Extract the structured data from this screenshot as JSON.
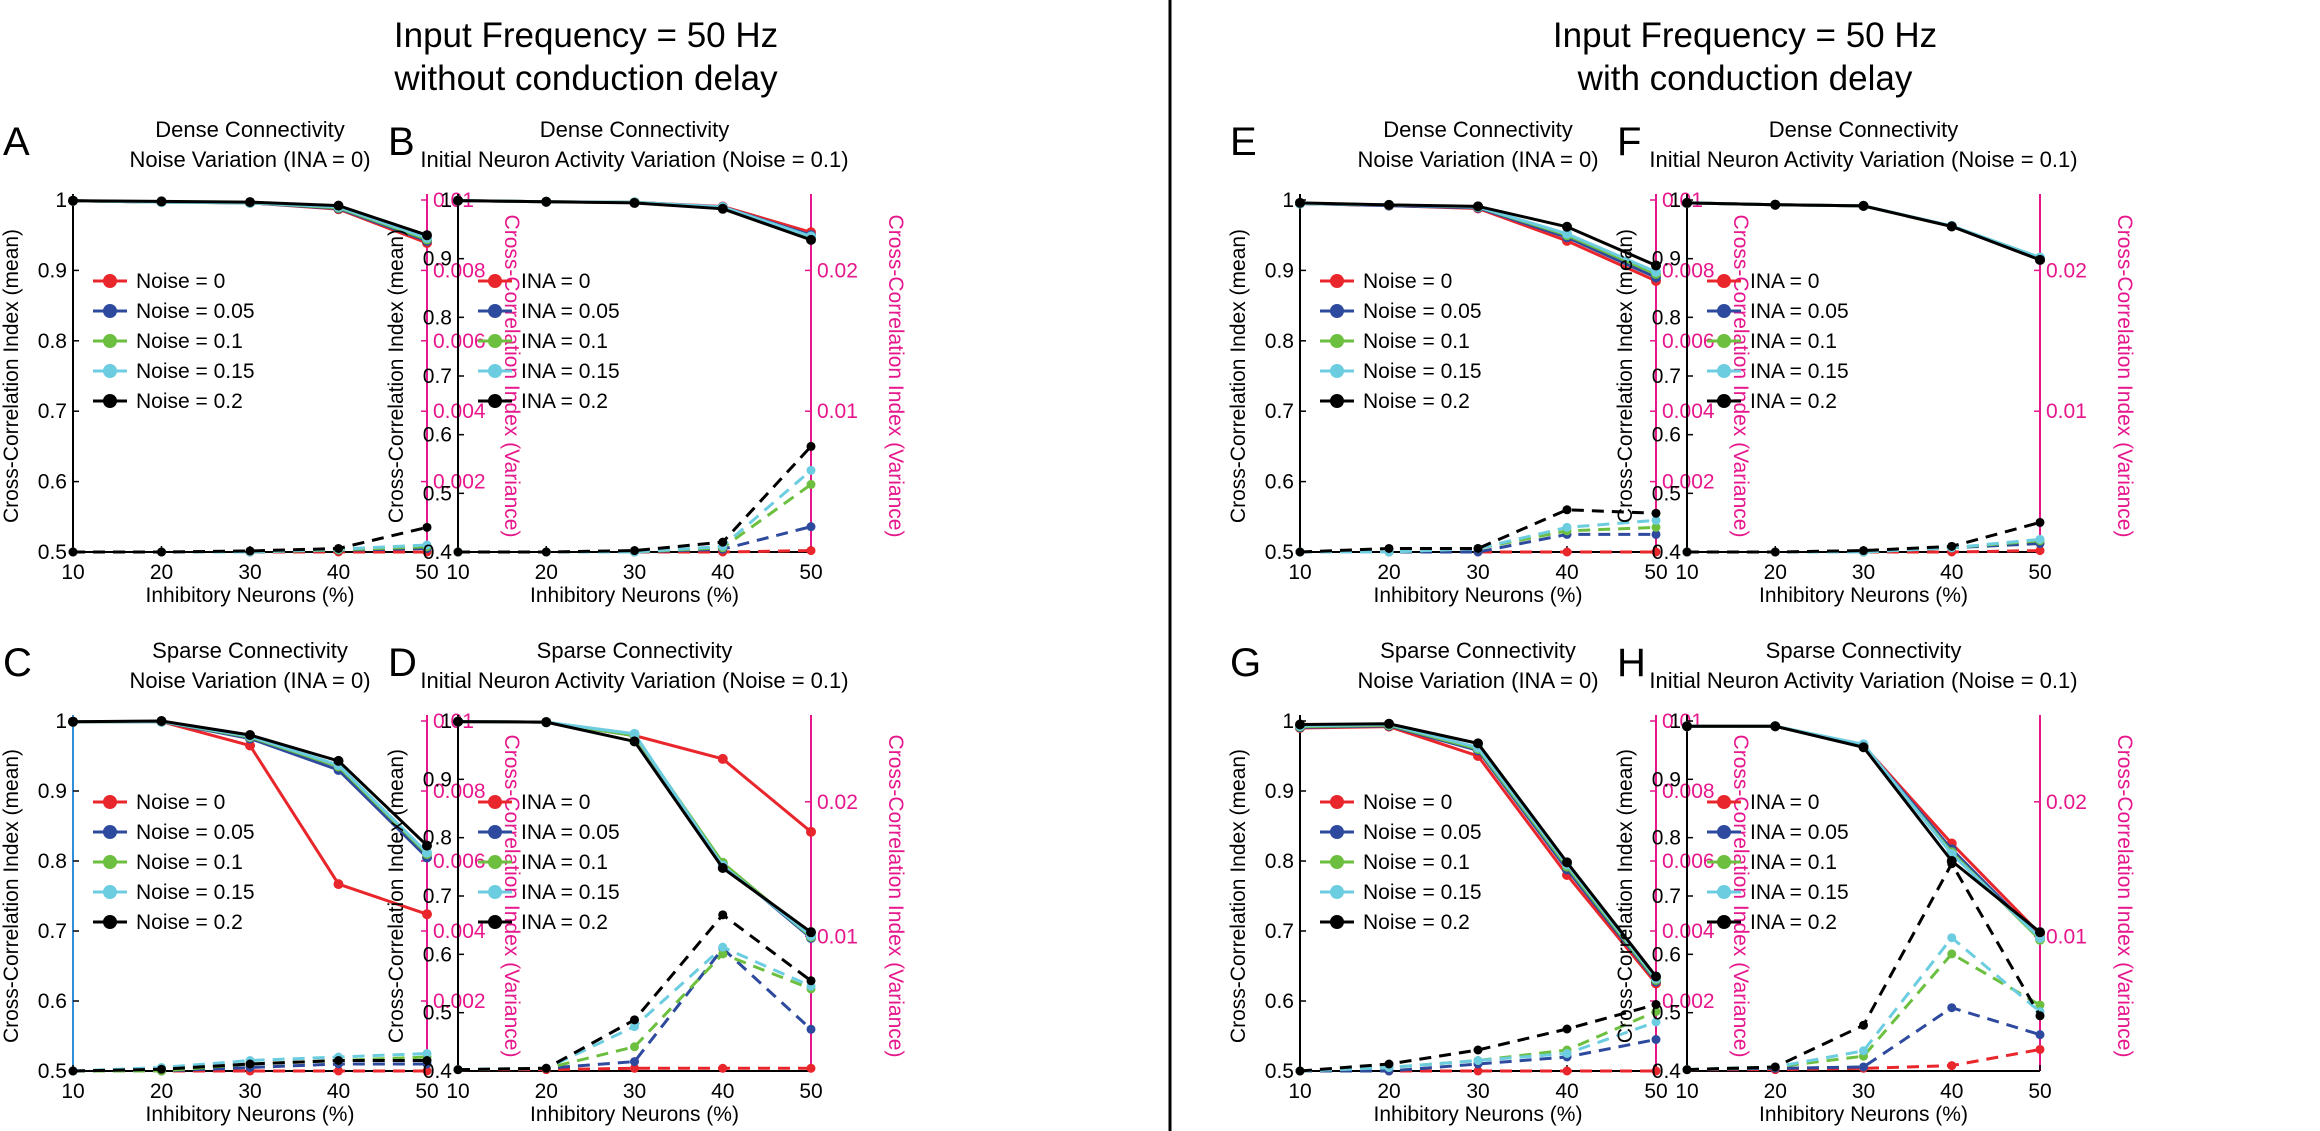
{
  "figure": {
    "left_title_line1": "Input Frequency = 50 Hz",
    "left_title_line2": "without conduction delay",
    "right_title_line1": "Input Frequency = 50 Hz",
    "right_title_line2": "with conduction delay",
    "colors": [
      "#e8262b",
      "#2e4a9e",
      "#6cbf3f",
      "#6ccde0",
      "#000000"
    ],
    "right_axis_color": "#e6178c",
    "left_axis_blue": "#2e8fd6"
  },
  "chart_data": [
    {
      "id": "A",
      "type": "line",
      "title_line1": "Dense Connectivity",
      "title_line2": "Noise Variation (INA = 0)",
      "xlabel": "Inhibitory Neurons (%)",
      "ylabel": "Cross-Correlation Index (mean)",
      "y2label": "Cross-Correlation Index (Variance)",
      "x": [
        10,
        20,
        30,
        40,
        50
      ],
      "ylim": [
        0.5,
        1
      ],
      "yticks": [
        "0.5",
        "0.6",
        "0.7",
        "0.8",
        "0.9",
        "1"
      ],
      "ytick_values": [
        0.5,
        0.6,
        0.7,
        0.8,
        0.9,
        1
      ],
      "y2lim": [
        0,
        0.01
      ],
      "y2ticks": [
        "0.002",
        "0.004",
        "0.006",
        "0.008",
        "0.01"
      ],
      "y2tick_values": [
        0.002,
        0.004,
        0.006,
        0.008,
        0.01
      ],
      "left_axis_colored": false,
      "legend": [
        "Noise = 0",
        "Noise = 0.05",
        "Noise = 0.1",
        "Noise = 0.15",
        "Noise = 0.2"
      ],
      "mean_series": [
        [
          0.999,
          0.997,
          0.996,
          0.987,
          0.939
        ],
        [
          0.999,
          0.997,
          0.996,
          0.988,
          0.942
        ],
        [
          0.999,
          0.997,
          0.996,
          0.989,
          0.944
        ],
        [
          0.999,
          0.997,
          0.996,
          0.99,
          0.946
        ],
        [
          0.999,
          0.998,
          0.997,
          0.992,
          0.95
        ]
      ],
      "var_series": [
        [
          0,
          0,
          0,
          0,
          0
        ],
        [
          0,
          0,
          0,
          5e-05,
          0.0001
        ],
        [
          0,
          0,
          0,
          6e-05,
          0.00015
        ],
        [
          0,
          0,
          0,
          8e-05,
          0.0002
        ],
        [
          0,
          0,
          3e-05,
          0.0001,
          0.0007
        ]
      ]
    },
    {
      "id": "B",
      "type": "line",
      "title_line1": "Dense Connectivity",
      "title_line2": "Initial Neuron Activity Variation (Noise = 0.1)",
      "xlabel": "Inhibitory Neurons (%)",
      "ylabel": "Cross-Correlation Index (mean)",
      "y2label": "Cross-Correlation Index (Variance)",
      "x": [
        10,
        20,
        30,
        40,
        50
      ],
      "ylim": [
        0.4,
        1
      ],
      "yticks": [
        "0.4",
        "0.5",
        "0.6",
        "0.7",
        "0.8",
        "0.9",
        "1"
      ],
      "ytick_values": [
        0.4,
        0.5,
        0.6,
        0.7,
        0.8,
        0.9,
        1
      ],
      "y2lim": [
        0,
        0.025
      ],
      "y2ticks": [
        "0.01",
        "0.02"
      ],
      "y2tick_values": [
        0.01,
        0.02
      ],
      "left_axis_colored": false,
      "legend": [
        "INA = 0",
        "INA = 0.05",
        "INA = 0.1",
        "INA = 0.15",
        "INA = 0.2"
      ],
      "mean_series": [
        [
          0.999,
          0.997,
          0.996,
          0.989,
          0.945
        ],
        [
          0.999,
          0.997,
          0.996,
          0.988,
          0.94
        ],
        [
          0.999,
          0.997,
          0.996,
          0.987,
          0.937
        ],
        [
          0.999,
          0.997,
          0.996,
          0.988,
          0.938
        ],
        [
          0.999,
          0.997,
          0.995,
          0.985,
          0.932
        ]
      ],
      "var_series": [
        [
          0,
          0,
          0,
          0,
          0.0001
        ],
        [
          0,
          0,
          0,
          0.0002,
          0.0018
        ],
        [
          0,
          0,
          0,
          0.0003,
          0.0048
        ],
        [
          0,
          0,
          0,
          0.0004,
          0.0058
        ],
        [
          0,
          0,
          0.0001,
          0.0007,
          0.0075
        ]
      ]
    },
    {
      "id": "C",
      "type": "line",
      "title_line1": "Sparse Connectivity",
      "title_line2": "Noise Variation (INA = 0)",
      "xlabel": "Inhibitory Neurons (%)",
      "ylabel": "Cross-Correlation Index (mean)",
      "y2label": "Cross-Correlation Index (Variance)",
      "x": [
        10,
        20,
        30,
        40,
        50
      ],
      "ylim": [
        0.5,
        1
      ],
      "yticks": [
        "0.5",
        "0.6",
        "0.7",
        "0.8",
        "0.9",
        "1"
      ],
      "ytick_values": [
        0.5,
        0.6,
        0.7,
        0.8,
        0.9,
        1
      ],
      "y2lim": [
        0,
        0.01
      ],
      "y2ticks": [
        "0.002",
        "0.004",
        "0.006",
        "0.008",
        "0.01"
      ],
      "y2tick_values": [
        0.002,
        0.004,
        0.006,
        0.008,
        0.01
      ],
      "left_axis_colored": true,
      "legend": [
        "Noise = 0",
        "Noise = 0.05",
        "Noise = 0.1",
        "Noise = 0.15",
        "Noise = 0.2"
      ],
      "mean_series": [
        [
          0.999,
          0.999,
          0.965,
          0.767,
          0.724
        ],
        [
          0.999,
          0.999,
          0.975,
          0.93,
          0.805
        ],
        [
          0.999,
          0.999,
          0.977,
          0.935,
          0.81
        ],
        [
          0.999,
          0.999,
          0.978,
          0.937,
          0.812
        ],
        [
          0.999,
          1.0,
          0.98,
          0.943,
          0.822
        ]
      ],
      "var_series": [
        [
          0,
          0,
          0,
          0,
          0
        ],
        [
          0,
          0,
          0.0001,
          0.0002,
          0.0002
        ],
        [
          0,
          0,
          0.0002,
          0.0003,
          0.0004
        ],
        [
          0,
          0.0001,
          0.0003,
          0.0004,
          0.0005
        ],
        [
          0,
          5e-05,
          0.0002,
          0.0003,
          0.0003
        ]
      ]
    },
    {
      "id": "D",
      "type": "line",
      "title_line1": "Sparse Connectivity",
      "title_line2": "Initial Neuron Activity Variation (Noise = 0.1)",
      "xlabel": "Inhibitory Neurons (%)",
      "ylabel": "Cross-Correlation Index (mean)",
      "y2label": "Cross-Correlation Index (Variance)",
      "x": [
        10,
        20,
        30,
        40,
        50
      ],
      "ylim": [
        0.4,
        1
      ],
      "yticks": [
        "0.4",
        "0.5",
        "0.6",
        "0.7",
        "0.8",
        "0.9",
        "1"
      ],
      "ytick_values": [
        0.4,
        0.5,
        0.6,
        0.7,
        0.8,
        0.9,
        1
      ],
      "y2lim": [
        0,
        0.026
      ],
      "y2ticks": [
        "0.01",
        "0.02"
      ],
      "y2tick_values": [
        0.01,
        0.02
      ],
      "left_axis_colored": false,
      "legend": [
        "INA = 0",
        "INA = 0.05",
        "INA = 0.1",
        "INA = 0.15",
        "INA = 0.2"
      ],
      "mean_series": [
        [
          0.999,
          0.998,
          0.975,
          0.935,
          0.81
        ],
        [
          0.999,
          0.998,
          0.975,
          0.755,
          0.628
        ],
        [
          0.999,
          0.998,
          0.975,
          0.757,
          0.63
        ],
        [
          0.999,
          0.998,
          0.978,
          0.752,
          0.632
        ],
        [
          0.999,
          0.998,
          0.965,
          0.748,
          0.638
        ]
      ],
      "var_series": [
        [
          0.0001,
          0.0001,
          0.0002,
          0.0002,
          0.0002
        ],
        [
          0.0001,
          0.0002,
          0.0007,
          0.0091,
          0.0031
        ],
        [
          0.0001,
          0.0002,
          0.0018,
          0.0087,
          0.0061
        ],
        [
          0.0001,
          0.0002,
          0.0033,
          0.0092,
          0.0063
        ],
        [
          0.0001,
          0.0002,
          0.0038,
          0.0116,
          0.0067
        ]
      ]
    },
    {
      "id": "E",
      "type": "line",
      "title_line1": "Dense Connectivity",
      "title_line2": "Noise Variation (INA = 0)",
      "xlabel": "Inhibitory Neurons (%)",
      "ylabel": "Cross-Correlation Index (mean)",
      "y2label": "Cross-Correlation Index (Variance)",
      "x": [
        10,
        20,
        30,
        40,
        50
      ],
      "ylim": [
        0.5,
        1
      ],
      "yticks": [
        "0.5",
        "0.6",
        "0.7",
        "0.8",
        "0.9",
        "1"
      ],
      "ytick_values": [
        0.5,
        0.6,
        0.7,
        0.8,
        0.9,
        1
      ],
      "y2lim": [
        0,
        0.01
      ],
      "y2ticks": [
        "0.002",
        "0.004",
        "0.006",
        "0.008",
        "0.01"
      ],
      "y2tick_values": [
        0.002,
        0.004,
        0.006,
        0.008,
        0.01
      ],
      "left_axis_colored": false,
      "legend": [
        "Noise = 0",
        "Noise = 0.05",
        "Noise = 0.1",
        "Noise = 0.15",
        "Noise = 0.2"
      ],
      "mean_series": [
        [
          0.995,
          0.992,
          0.988,
          0.942,
          0.885
        ],
        [
          0.995,
          0.992,
          0.989,
          0.947,
          0.89
        ],
        [
          0.995,
          0.993,
          0.99,
          0.95,
          0.895
        ],
        [
          0.995,
          0.993,
          0.99,
          0.952,
          0.898
        ],
        [
          0.996,
          0.993,
          0.991,
          0.962,
          0.907
        ]
      ],
      "var_series": [
        [
          0,
          0,
          0,
          0,
          0
        ],
        [
          0,
          0,
          0,
          0.0005,
          0.0005
        ],
        [
          0,
          0,
          0.0001,
          0.0006,
          0.0007
        ],
        [
          0,
          0,
          0.0001,
          0.0007,
          0.0009
        ],
        [
          0,
          0.0001,
          0.0001,
          0.0012,
          0.0011
        ]
      ]
    },
    {
      "id": "F",
      "type": "line",
      "title_line1": "Dense Connectivity",
      "title_line2": "Initial Neuron Activity Variation (Noise = 0.1)",
      "xlabel": "Inhibitory Neurons (%)",
      "ylabel": "Cross-Correlation Index (mean)",
      "y2label": "Cross-Correlation Index (Variance)",
      "x": [
        10,
        20,
        30,
        40,
        50
      ],
      "ylim": [
        0.4,
        1
      ],
      "yticks": [
        "0.4",
        "0.5",
        "0.6",
        "0.7",
        "0.8",
        "0.9",
        "1"
      ],
      "ytick_values": [
        0.4,
        0.5,
        0.6,
        0.7,
        0.8,
        0.9,
        1
      ],
      "y2lim": [
        0,
        0.025
      ],
      "y2ticks": [
        "0.01",
        "0.02"
      ],
      "y2tick_values": [
        0.01,
        0.02
      ],
      "left_axis_colored": false,
      "legend": [
        "INA = 0",
        "INA = 0.05",
        "INA = 0.1",
        "INA = 0.15",
        "INA = 0.2"
      ],
      "mean_series": [
        [
          0.995,
          0.992,
          0.99,
          0.955,
          0.898
        ],
        [
          0.995,
          0.992,
          0.99,
          0.955,
          0.898
        ],
        [
          0.995,
          0.992,
          0.99,
          0.955,
          0.9
        ],
        [
          0.995,
          0.992,
          0.99,
          0.956,
          0.902
        ],
        [
          0.995,
          0.992,
          0.99,
          0.955,
          0.898
        ]
      ],
      "var_series": [
        [
          0,
          0,
          0,
          0,
          0.0001
        ],
        [
          0,
          0,
          0,
          0.0003,
          0.0006
        ],
        [
          0,
          0,
          0,
          0.0003,
          0.0008
        ],
        [
          0,
          0,
          0,
          0.0003,
          0.0009
        ],
        [
          0,
          0,
          0.0001,
          0.0004,
          0.0021
        ]
      ]
    },
    {
      "id": "G",
      "type": "line",
      "title_line1": "Sparse Connectivity",
      "title_line2": "Noise Variation (INA = 0)",
      "xlabel": "Inhibitory Neurons (%)",
      "ylabel": "Cross-Correlation Index (mean)",
      "y2label": "Cross-Correlation Index (Variance)",
      "x": [
        10,
        20,
        30,
        40,
        50
      ],
      "ylim": [
        0.5,
        1
      ],
      "yticks": [
        "0.5",
        "0.6",
        "0.7",
        "0.8",
        "0.9",
        "1"
      ],
      "ytick_values": [
        0.5,
        0.6,
        0.7,
        0.8,
        0.9,
        1
      ],
      "y2lim": [
        0,
        0.01
      ],
      "y2ticks": [
        "0.002",
        "0.004",
        "0.006",
        "0.008",
        "0.01"
      ],
      "y2tick_values": [
        0.002,
        0.004,
        0.006,
        0.008,
        0.01
      ],
      "left_axis_colored": false,
      "legend": [
        "Noise = 0",
        "Noise = 0.05",
        "Noise = 0.1",
        "Noise = 0.15",
        "Noise = 0.2"
      ],
      "mean_series": [
        [
          0.99,
          0.992,
          0.95,
          0.78,
          0.625
        ],
        [
          0.991,
          0.993,
          0.958,
          0.788,
          0.628
        ],
        [
          0.992,
          0.994,
          0.96,
          0.792,
          0.63
        ],
        [
          0.993,
          0.995,
          0.962,
          0.795,
          0.632
        ],
        [
          0.995,
          0.996,
          0.968,
          0.798,
          0.635
        ]
      ],
      "var_series": [
        [
          0,
          0,
          0,
          0,
          0
        ],
        [
          0,
          0,
          0.0002,
          0.0004,
          0.0009
        ],
        [
          0,
          0.0001,
          0.0003,
          0.0006,
          0.0017
        ],
        [
          0,
          0.0001,
          0.0003,
          0.0005,
          0.0014
        ],
        [
          0,
          0.0002,
          0.0006,
          0.0012,
          0.0019
        ]
      ]
    },
    {
      "id": "H",
      "type": "line",
      "title_line1": "Sparse Connectivity",
      "title_line2": "Initial Neuron Activity Variation (Noise = 0.1)",
      "xlabel": "Inhibitory Neurons (%)",
      "ylabel": "Cross-Correlation Index (mean)",
      "y2label": "Cross-Correlation Index (Variance)",
      "x": [
        10,
        20,
        30,
        40,
        50
      ],
      "ylim": [
        0.4,
        1
      ],
      "yticks": [
        "0.4",
        "0.5",
        "0.6",
        "0.7",
        "0.8",
        "0.9",
        "1"
      ],
      "ytick_values": [
        0.4,
        0.5,
        0.6,
        0.7,
        0.8,
        0.9,
        1
      ],
      "y2lim": [
        0,
        0.026
      ],
      "y2ticks": [
        "0.01",
        "0.02"
      ],
      "y2tick_values": [
        0.01,
        0.02
      ],
      "left_axis_colored": false,
      "legend": [
        "INA = 0",
        "INA = 0.05",
        "INA = 0.1",
        "INA = 0.15",
        "INA = 0.2"
      ],
      "mean_series": [
        [
          0.991,
          0.991,
          0.958,
          0.79,
          0.635
        ],
        [
          0.991,
          0.991,
          0.958,
          0.78,
          0.628
        ],
        [
          0.991,
          0.991,
          0.957,
          0.775,
          0.625
        ],
        [
          0.991,
          0.991,
          0.96,
          0.772,
          0.628
        ],
        [
          0.991,
          0.991,
          0.955,
          0.76,
          0.638
        ]
      ],
      "var_series": [
        [
          0.0001,
          0.0001,
          0.0002,
          0.0004,
          0.0016
        ],
        [
          0.0001,
          0.0002,
          0.0003,
          0.0047,
          0.0027
        ],
        [
          0.0001,
          0.0003,
          0.0011,
          0.0087,
          0.0049
        ],
        [
          0.0001,
          0.0003,
          0.0015,
          0.0099,
          0.0044
        ],
        [
          0.0001,
          0.0003,
          0.0034,
          0.0154,
          0.0041
        ]
      ]
    }
  ]
}
